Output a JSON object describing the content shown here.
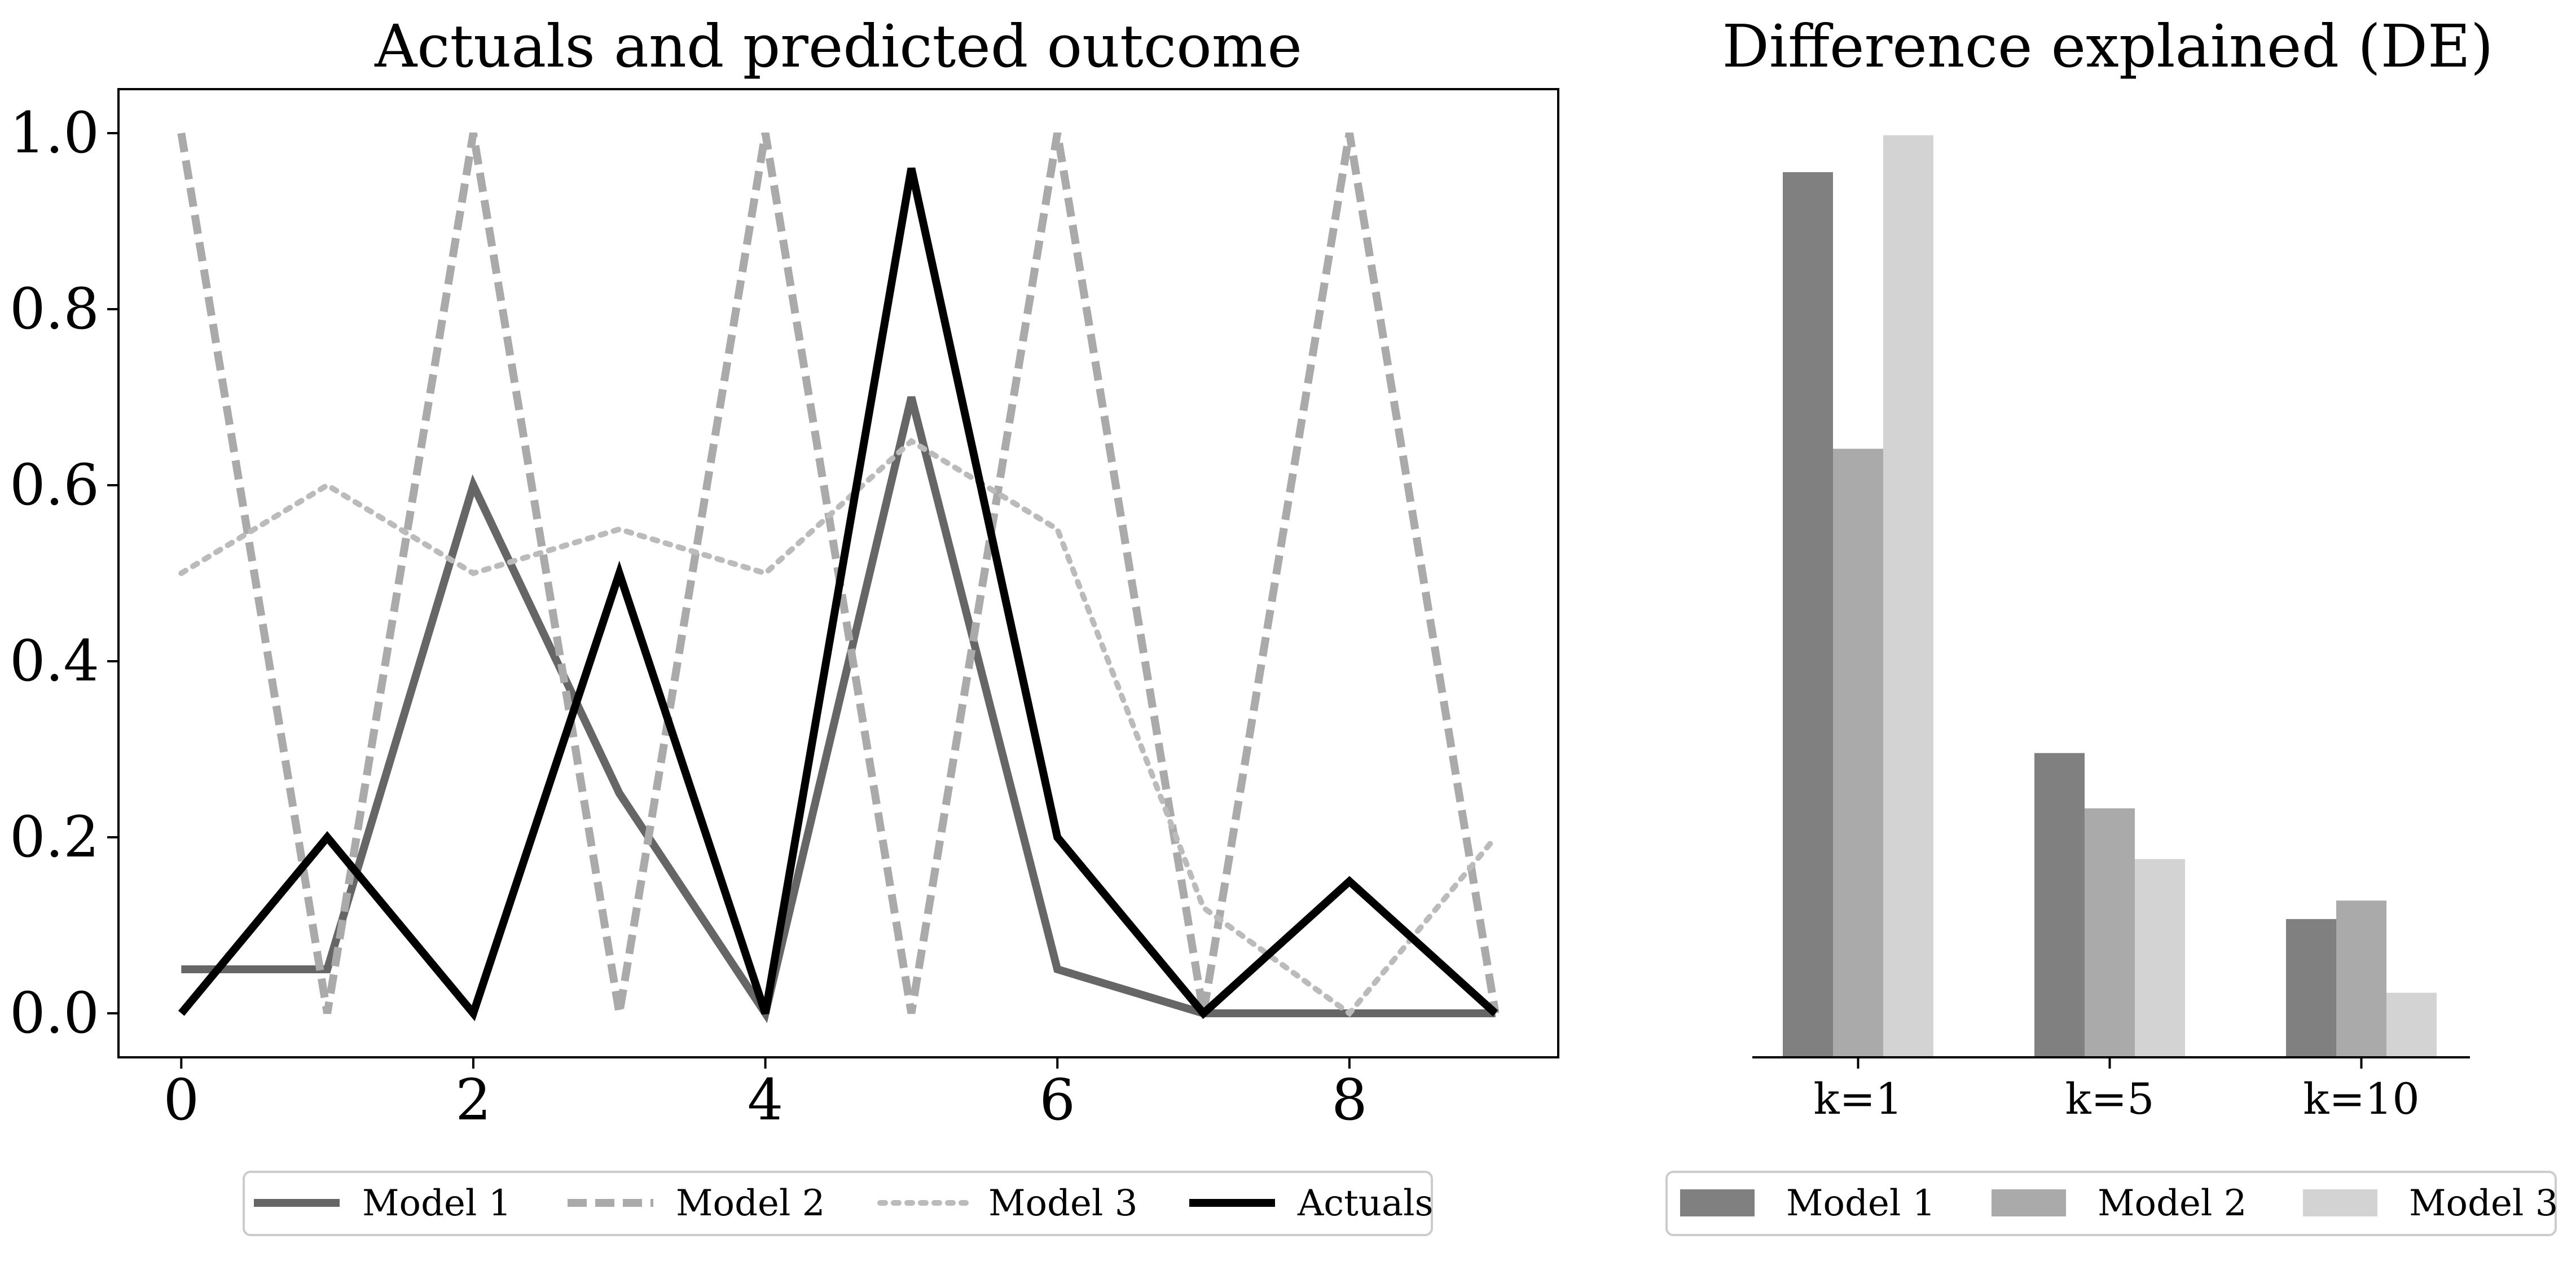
{
  "chart_data": [
    {
      "type": "line",
      "title": "Actuals and predicted outcome",
      "xlabel": "",
      "ylabel": "",
      "xlim": [
        -0.43,
        9.43
      ],
      "ylim": [
        -0.05,
        1.05
      ],
      "x_ticks": [
        0,
        2,
        4,
        6,
        8
      ],
      "y_ticks": [
        0.0,
        0.2,
        0.4,
        0.6,
        0.8,
        1.0
      ],
      "x_tick_labels": [
        "0",
        "2",
        "4",
        "6",
        "8"
      ],
      "y_tick_labels": [
        "0.0",
        "0.2",
        "0.4",
        "0.6",
        "0.8",
        "1.0"
      ],
      "x": [
        0,
        1,
        2,
        3,
        4,
        5,
        6,
        7,
        8,
        9
      ],
      "series": [
        {
          "name": "Model 1",
          "color": "#666666",
          "style": "solid",
          "values": [
            0.05,
            0.05,
            0.6,
            0.25,
            0.0,
            0.7,
            0.05,
            0.0,
            0.0,
            0.0
          ]
        },
        {
          "name": "Model 2",
          "color": "#aaaaaa",
          "style": "dashed",
          "values": [
            1.0,
            0.0,
            1.0,
            0.0,
            1.0,
            0.0,
            1.0,
            0.0,
            1.0,
            0.0
          ]
        },
        {
          "name": "Model 3",
          "color": "#bbbbbb",
          "style": "dotted",
          "values": [
            0.5,
            0.6,
            0.5,
            0.55,
            0.5,
            0.65,
            0.55,
            0.12,
            0.0,
            0.2
          ]
        },
        {
          "name": "Actuals",
          "color": "#000000",
          "style": "solid",
          "values": [
            0.0,
            0.2,
            0.0,
            0.5,
            0.0,
            0.96,
            0.2,
            0.0,
            0.15,
            0.0
          ]
        }
      ],
      "legend": "bottom-center",
      "grid": false
    },
    {
      "type": "bar",
      "title": "Difference explained (DE)",
      "xlabel": "",
      "ylabel": "",
      "categories": [
        "k=1",
        "k=5",
        "k=10"
      ],
      "ylim": [
        0,
        1.05
      ],
      "series": [
        {
          "name": "Model 1",
          "color": "#808080",
          "values": [
            0.96,
            0.33,
            0.15
          ]
        },
        {
          "name": "Model 2",
          "color": "#aaaaaa",
          "values": [
            0.66,
            0.27,
            0.17
          ]
        },
        {
          "name": "Model 3",
          "color": "#d3d3d3",
          "values": [
            1.0,
            0.215,
            0.07
          ]
        }
      ],
      "legend": "bottom-center",
      "grid": false
    }
  ]
}
